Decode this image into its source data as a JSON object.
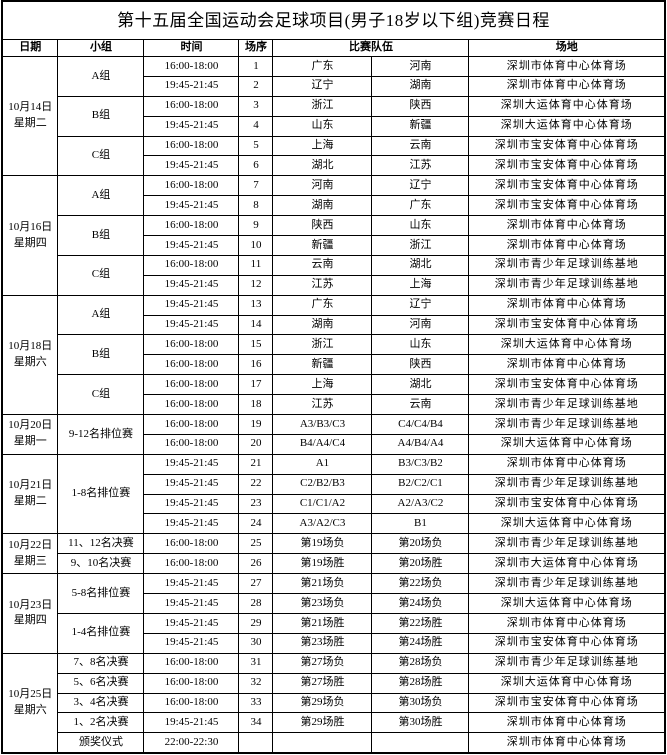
{
  "title": "第十五届全国运动会足球项目(男子18岁以下组)竞赛日程",
  "columns": [
    "日期",
    "小组",
    "时间",
    "场序",
    "比赛队伍",
    "场地"
  ],
  "colors": {
    "text": "#000000",
    "border": "#000000",
    "background": "#ffffff"
  },
  "days": [
    {
      "date": "10月14日",
      "weekday": "星期二",
      "groups": [
        {
          "label": "A组",
          "matches": [
            {
              "time": "16:00-18:00",
              "no": "1",
              "team1": "广东",
              "team2": "河南",
              "venue": "深圳市体育中心体育场"
            },
            {
              "time": "19:45-21:45",
              "no": "2",
              "team1": "辽宁",
              "team2": "湖南",
              "venue": "深圳市体育中心体育场"
            }
          ]
        },
        {
          "label": "B组",
          "matches": [
            {
              "time": "16:00-18:00",
              "no": "3",
              "team1": "浙江",
              "team2": "陕西",
              "venue": "深圳大运体育中心体育场"
            },
            {
              "time": "19:45-21:45",
              "no": "4",
              "team1": "山东",
              "team2": "新疆",
              "venue": "深圳大运体育中心体育场"
            }
          ]
        },
        {
          "label": "C组",
          "matches": [
            {
              "time": "16:00-18:00",
              "no": "5",
              "team1": "上海",
              "team2": "云南",
              "venue": "深圳市宝安体育中心体育场"
            },
            {
              "time": "19:45-21:45",
              "no": "6",
              "team1": "湖北",
              "team2": "江苏",
              "venue": "深圳市宝安体育中心体育场"
            }
          ]
        }
      ]
    },
    {
      "date": "10月16日",
      "weekday": "星期四",
      "groups": [
        {
          "label": "A组",
          "matches": [
            {
              "time": "16:00-18:00",
              "no": "7",
              "team1": "河南",
              "team2": "辽宁",
              "venue": "深圳市宝安体育中心体育场"
            },
            {
              "time": "19:45-21:45",
              "no": "8",
              "team1": "湖南",
              "team2": "广东",
              "venue": "深圳市宝安体育中心体育场"
            }
          ]
        },
        {
          "label": "B组",
          "matches": [
            {
              "time": "16:00-18:00",
              "no": "9",
              "team1": "陕西",
              "team2": "山东",
              "venue": "深圳市体育中心体育场"
            },
            {
              "time": "19:45-21:45",
              "no": "10",
              "team1": "新疆",
              "team2": "浙江",
              "venue": "深圳市体育中心体育场"
            }
          ]
        },
        {
          "label": "C组",
          "matches": [
            {
              "time": "16:00-18:00",
              "no": "11",
              "team1": "云南",
              "team2": "湖北",
              "venue": "深圳市青少年足球训练基地"
            },
            {
              "time": "19:45-21:45",
              "no": "12",
              "team1": "江苏",
              "team2": "上海",
              "venue": "深圳市青少年足球训练基地"
            }
          ]
        }
      ]
    },
    {
      "date": "10月18日",
      "weekday": "星期六",
      "groups": [
        {
          "label": "A组",
          "matches": [
            {
              "time": "19:45-21:45",
              "no": "13",
              "team1": "广东",
              "team2": "辽宁",
              "venue": "深圳市体育中心体育场"
            },
            {
              "time": "19:45-21:45",
              "no": "14",
              "team1": "湖南",
              "team2": "河南",
              "venue": "深圳市宝安体育中心体育场"
            }
          ]
        },
        {
          "label": "B组",
          "matches": [
            {
              "time": "16:00-18:00",
              "no": "15",
              "team1": "浙江",
              "team2": "山东",
              "venue": "深圳大运体育中心体育场"
            },
            {
              "time": "16:00-18:00",
              "no": "16",
              "team1": "新疆",
              "team2": "陕西",
              "venue": "深圳市体育中心体育场"
            }
          ]
        },
        {
          "label": "C组",
          "matches": [
            {
              "time": "16:00-18:00",
              "no": "17",
              "team1": "上海",
              "team2": "湖北",
              "venue": "深圳市宝安体育中心体育场"
            },
            {
              "time": "16:00-18:00",
              "no": "18",
              "team1": "江苏",
              "team2": "云南",
              "venue": "深圳市青少年足球训练基地"
            }
          ]
        }
      ]
    },
    {
      "date": "10月20日",
      "weekday": "星期一",
      "groups": [
        {
          "label": "9-12名排位赛",
          "matches": [
            {
              "time": "16:00-18:00",
              "no": "19",
              "team1": "A3/B3/C3",
              "team2": "C4/C4/B4",
              "venue": "深圳市青少年足球训练基地"
            },
            {
              "time": "16:00-18:00",
              "no": "20",
              "team1": "B4/A4/C4",
              "team2": "A4/B4/A4",
              "venue": "深圳大运体育中心体育场"
            }
          ]
        }
      ]
    },
    {
      "date": "10月21日",
      "weekday": "星期二",
      "groups": [
        {
          "label": "1-8名排位赛",
          "matches": [
            {
              "time": "19:45-21:45",
              "no": "21",
              "team1": "A1",
              "team2": "B3/C3/B2",
              "venue": "深圳市体育中心体育场"
            },
            {
              "time": "19:45-21:45",
              "no": "22",
              "team1": "C2/B2/B3",
              "team2": "B2/C2/C1",
              "venue": "深圳市青少年足球训练基地"
            },
            {
              "time": "19:45-21:45",
              "no": "23",
              "team1": "C1/C1/A2",
              "team2": "A2/A3/C2",
              "venue": "深圳市宝安体育中心体育场"
            },
            {
              "time": "19:45-21:45",
              "no": "24",
              "team1": "A3/A2/C3",
              "team2": "B1",
              "venue": "深圳大运体育中心体育场"
            }
          ]
        }
      ]
    },
    {
      "date": "10月22日",
      "weekday": "星期三",
      "groups": [
        {
          "label": "11、12名决赛",
          "matches": [
            {
              "time": "16:00-18:00",
              "no": "25",
              "team1": "第19场负",
              "team2": "第20场负",
              "venue": "深圳市青少年足球训练基地"
            }
          ]
        },
        {
          "label": "9、10名决赛",
          "matches": [
            {
              "time": "16:00-18:00",
              "no": "26",
              "team1": "第19场胜",
              "team2": "第20场胜",
              "venue": "深圳市大运体育中心体育场"
            }
          ]
        }
      ]
    },
    {
      "date": "10月23日",
      "weekday": "星期四",
      "groups": [
        {
          "label": "5-8名排位赛",
          "matches": [
            {
              "time": "19:45-21:45",
              "no": "27",
              "team1": "第21场负",
              "team2": "第22场负",
              "venue": "深圳市青少年足球训练基地"
            },
            {
              "time": "19:45-21:45",
              "no": "28",
              "team1": "第23场负",
              "team2": "第24场负",
              "venue": "深圳大运体育中心体育场"
            }
          ]
        },
        {
          "label": "1-4名排位赛",
          "matches": [
            {
              "time": "19:45-21:45",
              "no": "29",
              "team1": "第21场胜",
              "team2": "第22场胜",
              "venue": "深圳市体育中心体育场"
            },
            {
              "time": "19:45-21:45",
              "no": "30",
              "team1": "第23场胜",
              "team2": "第24场胜",
              "venue": "深圳市宝安体育中心体育场"
            }
          ]
        }
      ]
    },
    {
      "date": "10月25日",
      "weekday": "星期六",
      "groups": [
        {
          "label": "7、8名决赛",
          "matches": [
            {
              "time": "16:00-18:00",
              "no": "31",
              "team1": "第27场负",
              "team2": "第28场负",
              "venue": "深圳市青少年足球训练基地"
            }
          ]
        },
        {
          "label": "5、6名决赛",
          "matches": [
            {
              "time": "16:00-18:00",
              "no": "32",
              "team1": "第27场胜",
              "team2": "第28场胜",
              "venue": "深圳大运体育中心体育场"
            }
          ]
        },
        {
          "label": "3、4名决赛",
          "matches": [
            {
              "time": "16:00-18:00",
              "no": "33",
              "team1": "第29场负",
              "team2": "第30场负",
              "venue": "深圳市宝安体育中心体育场"
            }
          ]
        },
        {
          "label": "1、2名决赛",
          "matches": [
            {
              "time": "19:45-21:45",
              "no": "34",
              "team1": "第29场胜",
              "team2": "第30场胜",
              "venue": "深圳市体育中心体育场"
            }
          ]
        },
        {
          "label": "颁奖仪式",
          "matches": [
            {
              "time": "22:00-22:30",
              "no": "",
              "team1": "",
              "team2": "",
              "venue": "深圳市体育中心体育场"
            }
          ]
        }
      ]
    }
  ]
}
